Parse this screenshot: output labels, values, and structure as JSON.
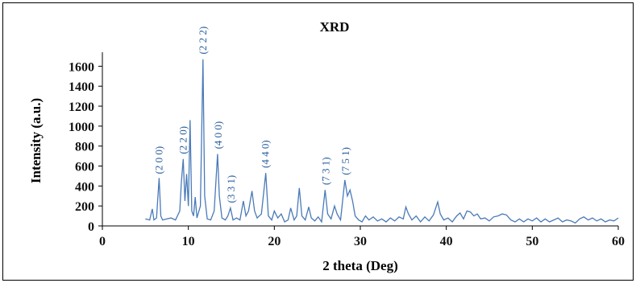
{
  "chart_data": {
    "type": "line",
    "title": "XRD",
    "xlabel": "2 theta (Deg)",
    "ylabel": "Intensity (a.u.)",
    "color": "#4a7ab8",
    "xlim": [
      0,
      60
    ],
    "xticks": [
      0,
      10,
      20,
      30,
      40,
      50,
      60
    ],
    "ylim": [
      0,
      1740
    ],
    "yticks": [
      0,
      200,
      400,
      600,
      800,
      1000,
      1200,
      1400,
      1600
    ],
    "annotations": [
      "(2 0 0)",
      "(2 2 0)",
      "(2 2 2)",
      "(4 0 0)",
      "(3 3 1)",
      "(4 4 0)",
      "(7 3 1)",
      "(7 5 1)"
    ],
    "x": [
      5,
      5.5,
      5.8,
      6.0,
      6.3,
      6.6,
      6.8,
      7.0,
      7.5,
      8.0,
      8.5,
      9.0,
      9.2,
      9.4,
      9.6,
      9.8,
      10.0,
      10.2,
      10.4,
      10.6,
      10.8,
      11.0,
      11.4,
      11.7,
      11.9,
      12.2,
      12.6,
      13.0,
      13.4,
      13.6,
      13.9,
      14.3,
      14.6,
      14.9,
      15.2,
      15.6,
      16.0,
      16.4,
      16.7,
      17.0,
      17.4,
      17.7,
      18.0,
      18.5,
      19.0,
      19.3,
      19.7,
      20.0,
      20.4,
      20.8,
      21.2,
      21.6,
      21.9,
      22.3,
      22.6,
      22.9,
      23.2,
      23.6,
      24.0,
      24.3,
      24.7,
      25.1,
      25.5,
      25.9,
      26.2,
      26.6,
      27.0,
      27.3,
      27.7,
      28.2,
      28.5,
      28.8,
      29.1,
      29.4,
      29.8,
      30.2,
      30.6,
      31.0,
      31.5,
      32.0,
      32.5,
      33.0,
      33.5,
      34.0,
      34.5,
      35.0,
      35.3,
      35.6,
      36.0,
      36.5,
      37.0,
      37.5,
      38.0,
      38.5,
      39.0,
      39.3,
      39.7,
      40.2,
      40.7,
      41.2,
      41.6,
      42.0,
      42.4,
      42.8,
      43.2,
      43.6,
      44.0,
      44.5,
      45.0,
      45.5,
      46.0,
      46.5,
      47.0,
      47.5,
      48.0,
      48.5,
      49.0,
      49.5,
      50.0,
      50.5,
      51.0,
      51.5,
      52.0,
      52.5,
      53.0,
      53.5,
      54.0,
      54.5,
      55.0,
      55.5,
      56.0,
      56.5,
      57.0,
      57.5,
      58.0,
      58.5,
      59.0,
      59.5,
      60.0
    ],
    "values": [
      70,
      60,
      170,
      60,
      80,
      480,
      100,
      60,
      70,
      80,
      60,
      150,
      450,
      670,
      250,
      520,
      200,
      1060,
      150,
      100,
      290,
      80,
      200,
      1670,
      300,
      70,
      60,
      150,
      720,
      300,
      80,
      60,
      100,
      180,
      60,
      80,
      60,
      250,
      100,
      150,
      350,
      150,
      80,
      120,
      530,
      100,
      60,
      150,
      80,
      120,
      40,
      60,
      180,
      60,
      100,
      380,
      100,
      60,
      190,
      80,
      50,
      90,
      40,
      360,
      120,
      70,
      200,
      120,
      60,
      460,
      300,
      360,
      250,
      100,
      60,
      40,
      100,
      60,
      90,
      50,
      70,
      40,
      80,
      50,
      90,
      70,
      190,
      120,
      60,
      100,
      40,
      90,
      50,
      110,
      240,
      120,
      60,
      80,
      40,
      100,
      130,
      70,
      150,
      140,
      100,
      120,
      70,
      80,
      50,
      90,
      100,
      120,
      110,
      60,
      40,
      70,
      40,
      70,
      50,
      80,
      40,
      70,
      40,
      60,
      80,
      40,
      60,
      50,
      30,
      70,
      90,
      60,
      80,
      50,
      70,
      40,
      60,
      50,
      80
    ]
  }
}
